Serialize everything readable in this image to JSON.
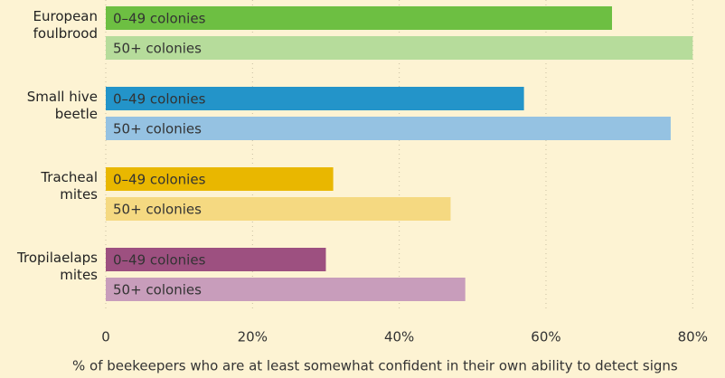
{
  "chart_data": {
    "type": "bar",
    "orientation": "horizontal",
    "categories": [
      "European foulbrood",
      "Small hive beetle",
      "Tracheal mites",
      "Tropilaelaps mites"
    ],
    "series": [
      {
        "name": "0–49 colonies",
        "colors": [
          "#6dbf42",
          "#2394c9",
          "#e9b700",
          "#9d5080"
        ],
        "values": [
          69,
          57,
          31,
          30
        ]
      },
      {
        "name": "50+ colonies",
        "colors": [
          "#b6dc9b",
          "#95c2e2",
          "#f5d981",
          "#c89dbb"
        ],
        "values": [
          80,
          77,
          47,
          49
        ]
      }
    ],
    "xlim": [
      0,
      84.4
    ],
    "xticks": [
      0,
      {
        "value": 20,
        "label": "20%"
      },
      {
        "value": 40,
        "label": "40%"
      },
      {
        "value": 60,
        "label": "60%"
      },
      {
        "value": 80,
        "label": "80%"
      }
    ],
    "xlabel": "% of beekeepers who are at least somewhat confident in their own ability to detect signs",
    "grid": true
  }
}
